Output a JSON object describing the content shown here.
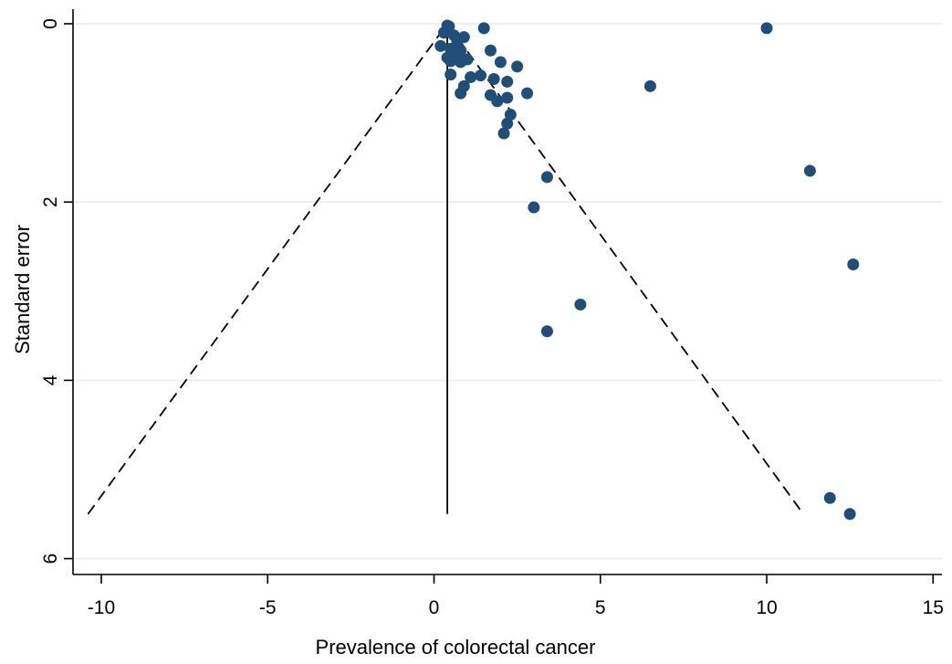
{
  "chart_data": {
    "type": "scatter",
    "xlabel": "Prevalence of colorectal cancer",
    "ylabel": "Standard error",
    "xlim": [
      -10.5,
      15.3
    ],
    "ylim": [
      6.1,
      -0.1
    ],
    "y_axis_reversed": true,
    "grid": "horizontal",
    "x_ticks": [
      -10,
      -5,
      0,
      5,
      10,
      15
    ],
    "x_tick_labels": [
      "-10",
      "-5",
      "0",
      "5",
      "10",
      "15"
    ],
    "y_ticks": [
      0,
      2,
      4,
      6
    ],
    "y_tick_labels": [
      "0",
      "2",
      "4",
      "6"
    ],
    "point_color": "#1f4e79",
    "pooled_estimate": 0.4,
    "funnel": {
      "apex": [
        0.4,
        0.0
      ],
      "left_base": [
        -10.4,
        5.5
      ],
      "right_base": [
        11.1,
        5.5
      ]
    },
    "points": [
      {
        "x": 0.4,
        "y": 0.02
      },
      {
        "x": 0.45,
        "y": 0.03
      },
      {
        "x": 1.5,
        "y": 0.05
      },
      {
        "x": 10.0,
        "y": 0.05
      },
      {
        "x": 0.3,
        "y": 0.1
      },
      {
        "x": 0.6,
        "y": 0.13
      },
      {
        "x": 0.9,
        "y": 0.15
      },
      {
        "x": 0.7,
        "y": 0.2
      },
      {
        "x": 0.2,
        "y": 0.25
      },
      {
        "x": 0.5,
        "y": 0.28
      },
      {
        "x": 0.8,
        "y": 0.3
      },
      {
        "x": 1.7,
        "y": 0.3
      },
      {
        "x": 0.6,
        "y": 0.35
      },
      {
        "x": 0.4,
        "y": 0.38
      },
      {
        "x": 0.7,
        "y": 0.4
      },
      {
        "x": 1.0,
        "y": 0.4
      },
      {
        "x": 0.5,
        "y": 0.42
      },
      {
        "x": 0.8,
        "y": 0.43
      },
      {
        "x": 2.0,
        "y": 0.43
      },
      {
        "x": 2.5,
        "y": 0.48
      },
      {
        "x": 0.5,
        "y": 0.57
      },
      {
        "x": 1.4,
        "y": 0.58
      },
      {
        "x": 1.1,
        "y": 0.6
      },
      {
        "x": 1.8,
        "y": 0.62
      },
      {
        "x": 2.2,
        "y": 0.65
      },
      {
        "x": 0.9,
        "y": 0.7
      },
      {
        "x": 6.5,
        "y": 0.7
      },
      {
        "x": 0.8,
        "y": 0.78
      },
      {
        "x": 1.7,
        "y": 0.8
      },
      {
        "x": 2.8,
        "y": 0.78
      },
      {
        "x": 2.2,
        "y": 0.83
      },
      {
        "x": 1.9,
        "y": 0.87
      },
      {
        "x": 2.3,
        "y": 1.02
      },
      {
        "x": 2.2,
        "y": 1.12
      },
      {
        "x": 2.1,
        "y": 1.23
      },
      {
        "x": 11.3,
        "y": 1.65
      },
      {
        "x": 3.4,
        "y": 1.72
      },
      {
        "x": 3.0,
        "y": 2.06
      },
      {
        "x": 12.6,
        "y": 2.7
      },
      {
        "x": 4.4,
        "y": 3.15
      },
      {
        "x": 3.4,
        "y": 3.45
      },
      {
        "x": 11.9,
        "y": 5.32
      },
      {
        "x": 12.5,
        "y": 5.5
      }
    ]
  }
}
